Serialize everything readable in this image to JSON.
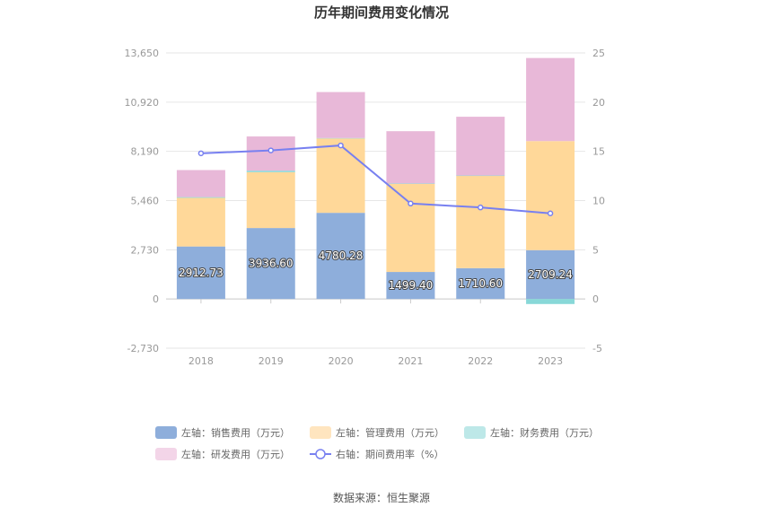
{
  "chart_data": {
    "type": "bar",
    "stacked": true,
    "title": "历年期间费用变化情况",
    "categories": [
      "2018",
      "2019",
      "2020",
      "2021",
      "2022",
      "2023"
    ],
    "y_left": {
      "ticks": [
        -2730,
        0,
        2730,
        5460,
        8190,
        10920,
        13650
      ],
      "tick_labels": [
        "-2,730",
        "0",
        "2,730",
        "5,460",
        "8,190",
        "10,920",
        "13,650"
      ],
      "ylim": [
        -2730,
        13650
      ]
    },
    "y_right": {
      "ticks": [
        -5,
        0,
        5,
        10,
        15,
        20,
        25
      ],
      "tick_labels": [
        "-5",
        "0",
        "5",
        "10",
        "15",
        "20",
        "25"
      ],
      "ylim": [
        -5,
        25
      ]
    },
    "series": [
      {
        "name": "左轴：销售费用（万元）",
        "axis": "left",
        "kind": "bar",
        "color": "#8eaedb",
        "values": [
          2912.73,
          3936.6,
          4780.28,
          1499.4,
          1710.6,
          2709.24
        ],
        "labels": [
          "2912.73",
          "3936.60",
          "4780.28",
          "1499.40",
          "1710.60",
          "2709.24"
        ]
      },
      {
        "name": "左轴：管理费用（万元）",
        "axis": "left",
        "kind": "bar",
        "color": "#ffd899",
        "legend_color": "#ffe5bf",
        "values": [
          2700,
          3100,
          4130,
          4900,
          5130,
          6050
        ]
      },
      {
        "name": "左轴：财务费用（万元）",
        "axis": "left",
        "kind": "bar",
        "color": "#88d8d8",
        "legend_color": "#bde8e8",
        "values": [
          40,
          80,
          20,
          10,
          10,
          -280
        ]
      },
      {
        "name": "左轴：研发费用（万元）",
        "axis": "left",
        "kind": "bar",
        "color": "#e8b8d8",
        "legend_color": "#f3d5e8",
        "values": [
          1500,
          1900,
          2550,
          2900,
          3260,
          4610
        ]
      },
      {
        "name": "右轴：期间费用率（%）",
        "axis": "right",
        "kind": "line",
        "color": "#7880f0",
        "values": [
          14.8,
          15.1,
          15.6,
          9.7,
          9.3,
          8.7
        ]
      }
    ],
    "source": "数据来源：恒生聚源"
  }
}
